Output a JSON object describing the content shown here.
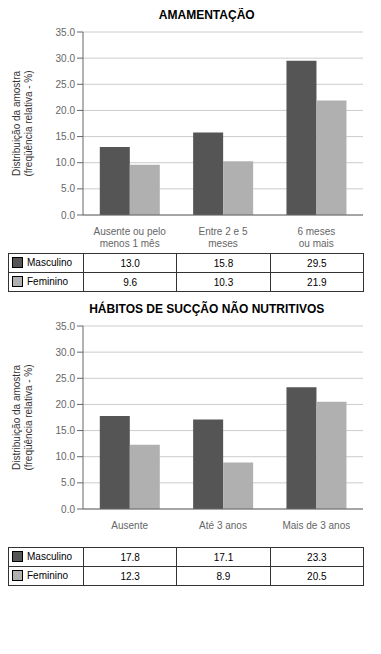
{
  "chart_data": [
    {
      "type": "bar",
      "title": "AMAMENTAÇÃO",
      "categories": [
        "Ausente ou pelo\nmenos 1 mês",
        "Entre 2 e 5\nmeses",
        "6 meses\nou mais"
      ],
      "series": [
        {
          "name": "Masculino",
          "color": "#555555",
          "values": [
            13.0,
            15.8,
            29.5
          ],
          "value_labels": [
            "13.0",
            "15.8",
            "29.5"
          ]
        },
        {
          "name": "Feminino",
          "color": "#b0b0b0",
          "values": [
            9.6,
            10.3,
            21.9
          ],
          "value_labels": [
            "9.6",
            "10.3",
            "21.9"
          ]
        }
      ],
      "ylabel": "Distribuição da amostra\n(freqüência relativa - %)",
      "ylim": [
        0,
        35
      ],
      "yticks": [
        {
          "value": 0,
          "label": "0.0"
        },
        {
          "value": 5,
          "label": "5.0"
        },
        {
          "value": 10,
          "label": "10.0"
        },
        {
          "value": 15,
          "label": "15.0"
        },
        {
          "value": 20,
          "label": "20.0"
        },
        {
          "value": 25,
          "label": "25.0"
        },
        {
          "value": 30,
          "label": "30.0"
        },
        {
          "value": 35,
          "label": "35.0"
        }
      ],
      "grid": true,
      "legend": "bottom",
      "data_labels": true
    },
    {
      "type": "bar",
      "title": "HÁBITOS DE SUCÇÃO NÃO NUTRITIVOS",
      "categories": [
        "Ausente",
        "Até 3 anos",
        "Mais de 3 anos"
      ],
      "series": [
        {
          "name": "Masculino",
          "color": "#555555",
          "values": [
            17.8,
            17.1,
            23.3
          ],
          "value_labels": [
            "17.8",
            "17.1",
            "23.3"
          ]
        },
        {
          "name": "Feminino",
          "color": "#b0b0b0",
          "values": [
            12.3,
            8.9,
            20.5
          ],
          "value_labels": [
            "12.3",
            "8.9",
            "20.5"
          ]
        }
      ],
      "ylabel": "Distribuição da amostra\n(freqüência relativa - %)",
      "ylim": [
        0,
        35
      ],
      "yticks": [
        {
          "value": 0,
          "label": "0.0"
        },
        {
          "value": 5,
          "label": "5.0"
        },
        {
          "value": 10,
          "label": "10.0"
        },
        {
          "value": 15,
          "label": "15.0"
        },
        {
          "value": 20,
          "label": "20.0"
        },
        {
          "value": 25,
          "label": "25.0"
        },
        {
          "value": 30,
          "label": "30.0"
        },
        {
          "value": 35,
          "label": "35.0"
        }
      ],
      "grid": true,
      "legend": "bottom",
      "data_labels": true
    }
  ]
}
